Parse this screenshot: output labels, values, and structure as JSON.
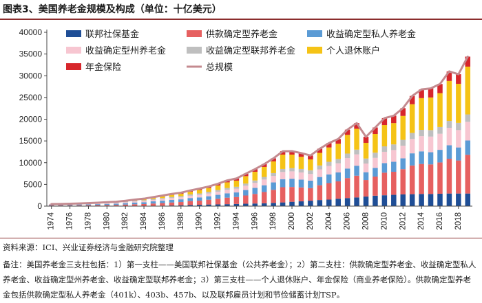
{
  "figure": {
    "title": "图表3、美国养老金规模及构成（单位：十亿美元）",
    "source": "资料来源：ICI、兴业证券经济与金融研究院整理",
    "note": "备注：美国养老金三支柱包括：1）第一支柱——美国联邦社保基金（公共养老金）；2）第二支柱：供款确定型养老金、收益确定型私人养老金、收益确定型州养老金、收益确定型联邦养老金；3）第三支柱——个人退休账户、年金保险（商业养老保险）。供款确定型养老金包括供款确定型私人养老金（401k）、403b、457b、以及联邦雇员计划和节俭储蓄计划TSP。"
  },
  "chart_data": {
    "type": "bar",
    "stacked": true,
    "ylim": [
      0,
      40000
    ],
    "yticks": [
      0,
      5000,
      10000,
      15000,
      20000,
      25000,
      30000,
      35000,
      40000
    ],
    "xtick_labels": [
      "1974",
      "1976",
      "1978",
      "1980",
      "1982",
      "1984",
      "1986",
      "1988",
      "1990",
      "1992",
      "1994",
      "1996",
      "1998",
      "2000",
      "2002",
      "2004",
      "2006",
      "2008",
      "2010",
      "2012",
      "2014",
      "2016",
      "2018"
    ],
    "categories": [
      "1974",
      "1975",
      "1976",
      "1977",
      "1978",
      "1979",
      "1980",
      "1981",
      "1982",
      "1983",
      "1984",
      "1985",
      "1986",
      "1987",
      "1988",
      "1989",
      "1990",
      "1991",
      "1992",
      "1993",
      "1994",
      "1995",
      "1996",
      "1997",
      "1998",
      "1999",
      "2000",
      "2001",
      "2002",
      "2003",
      "2004",
      "2005",
      "2006",
      "2007",
      "2008",
      "2009",
      "2010",
      "2011",
      "2012",
      "2013",
      "2014",
      "2015",
      "2016",
      "2017",
      "2018",
      "2019"
    ],
    "series": [
      {
        "name": "联邦社保基金",
        "color": "#1f4e96",
        "values": [
          40,
          40,
          40,
          40,
          40,
          40,
          40,
          40,
          50,
          50,
          60,
          70,
          100,
          140,
          190,
          260,
          310,
          370,
          400,
          450,
          500,
          550,
          600,
          650,
          750,
          850,
          1000,
          1100,
          1250,
          1400,
          1500,
          1700,
          1850,
          2000,
          2200,
          2400,
          2500,
          2600,
          2700,
          2750,
          2800,
          2800,
          2850,
          2900,
          2900,
          2900
        ]
      },
      {
        "name": "供款确定型养老金",
        "color": "#e66060",
        "values": [
          120,
          130,
          140,
          160,
          180,
          200,
          230,
          250,
          310,
          380,
          420,
          530,
          600,
          700,
          750,
          900,
          950,
          1100,
          1300,
          1500,
          1600,
          1900,
          2200,
          2600,
          3000,
          3500,
          3400,
          3200,
          2900,
          3400,
          3800,
          4000,
          4600,
          5000,
          3800,
          4400,
          5200,
          5300,
          5800,
          6600,
          6900,
          6800,
          7200,
          8000,
          7600,
          8900
        ]
      },
      {
        "name": "收益确定型私人养老金",
        "color": "#5b9bd5",
        "values": [
          150,
          150,
          170,
          180,
          200,
          220,
          250,
          270,
          320,
          400,
          420,
          500,
          550,
          600,
          620,
          700,
          750,
          800,
          900,
          1000,
          1050,
          1250,
          1400,
          1550,
          1700,
          1850,
          1900,
          1800,
          1700,
          1900,
          2000,
          2050,
          2200,
          2300,
          1800,
          2000,
          2200,
          2300,
          2500,
          2800,
          2900,
          2800,
          2900,
          3100,
          3000,
          3300
        ]
      },
      {
        "name": "收益确定型州养老金",
        "color": "#f7c6d1",
        "values": [
          90,
          90,
          100,
          110,
          120,
          140,
          160,
          180,
          210,
          250,
          280,
          320,
          370,
          420,
          460,
          530,
          580,
          650,
          720,
          800,
          860,
          1000,
          1150,
          1320,
          1500,
          1650,
          1700,
          1650,
          1550,
          1750,
          1950,
          2100,
          2400,
          2600,
          2000,
          2300,
          2600,
          2700,
          2900,
          3300,
          3500,
          3600,
          3700,
          4000,
          4000,
          4300
        ]
      },
      {
        "name": "收益确定型联邦养老金",
        "color": "#bfbfbf",
        "values": [
          50,
          50,
          60,
          70,
          80,
          100,
          110,
          130,
          150,
          170,
          190,
          210,
          230,
          250,
          280,
          300,
          330,
          350,
          380,
          420,
          450,
          500,
          550,
          600,
          650,
          700,
          750,
          800,
          850,
          900,
          950,
          1000,
          1050,
          1100,
          1150,
          1200,
          1250,
          1300,
          1350,
          1400,
          1450,
          1500,
          1550,
          1600,
          1650,
          1700
        ]
      },
      {
        "name": "个人退休账户",
        "color": "#f5c316",
        "values": [
          10,
          15,
          20,
          30,
          40,
          50,
          60,
          80,
          110,
          160,
          220,
          300,
          400,
          480,
          550,
          650,
          800,
          900,
          1050,
          1300,
          1400,
          1700,
          2000,
          2300,
          2700,
          3300,
          3100,
          2800,
          2500,
          2900,
          3300,
          3500,
          4300,
          4800,
          3600,
          4300,
          4900,
          4900,
          5500,
          6600,
          7300,
          7500,
          7800,
          9200,
          9000,
          11000
        ]
      },
      {
        "name": "年金保险",
        "color": "#d7262b",
        "values": [
          20,
          20,
          20,
          30,
          30,
          40,
          50,
          60,
          70,
          90,
          120,
          150,
          180,
          210,
          240,
          270,
          310,
          350,
          400,
          450,
          500,
          550,
          600,
          650,
          700,
          770,
          800,
          850,
          900,
          950,
          1000,
          1100,
          1200,
          1300,
          1400,
          1500,
          1600,
          1700,
          1800,
          1900,
          2000,
          2100,
          2100,
          2200,
          2200,
          2300
        ]
      }
    ],
    "total": {
      "name": "总规模",
      "color": "#c48a8f",
      "values": [
        480,
        495,
        550,
        620,
        690,
        790,
        900,
        1010,
        1220,
        1500,
        1710,
        2080,
        2430,
        2800,
        3090,
        3610,
        4030,
        4520,
        5150,
        5920,
        6360,
        7450,
        8500,
        9670,
        11000,
        12620,
        12650,
        12200,
        11650,
        13200,
        14500,
        15450,
        17600,
        19100,
        15950,
        18100,
        20250,
        20800,
        22550,
        25350,
        26850,
        27100,
        28100,
        31000,
        30350,
        34400
      ]
    }
  }
}
